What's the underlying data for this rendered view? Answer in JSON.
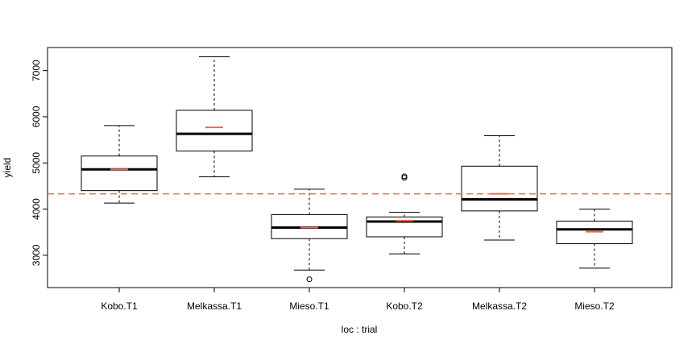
{
  "chart_data": {
    "type": "box",
    "xlabel": "loc : trial",
    "ylabel": "yield",
    "ylim": [
      2300,
      7500
    ],
    "yticks": [
      3000,
      4000,
      5000,
      6000,
      7000
    ],
    "reference_line": {
      "value": 4330,
      "style": "dashed",
      "color": "#F4664A"
    },
    "colors": {
      "box_border": "#000000",
      "median": "#000000",
      "mean_marker": "#F4664A",
      "reference": "#F4664A"
    },
    "categories": [
      "Kobo.T1",
      "Melkassa.T1",
      "Mieso.T1",
      "Kobo.T2",
      "Melkassa.T2",
      "Mieso.T2"
    ],
    "boxes": [
      {
        "category": "Kobo.T1",
        "whisker_low": 4130,
        "q1": 4400,
        "median": 4860,
        "q3": 5150,
        "whisker_high": 5810,
        "mean": 4860,
        "outliers": []
      },
      {
        "category": "Melkassa.T1",
        "whisker_low": 4700,
        "q1": 5260,
        "median": 5630,
        "q3": 6140,
        "whisker_high": 7300,
        "mean": 5770,
        "outliers": []
      },
      {
        "category": "Mieso.T1",
        "whisker_low": 2680,
        "q1": 3360,
        "median": 3600,
        "q3": 3880,
        "whisker_high": 4430,
        "mean": 3600,
        "outliers": [
          2480
        ]
      },
      {
        "category": "Kobo.T2",
        "whisker_low": 3030,
        "q1": 3400,
        "median": 3730,
        "q3": 3830,
        "whisker_high": 3930,
        "mean": 3750,
        "outliers": [
          4680,
          4710
        ]
      },
      {
        "category": "Melkassa.T2",
        "whisker_low": 3330,
        "q1": 3960,
        "median": 4210,
        "q3": 4930,
        "whisker_high": 5590,
        "mean": 4330,
        "outliers": []
      },
      {
        "category": "Mieso.T2",
        "whisker_low": 2720,
        "q1": 3250,
        "median": 3560,
        "q3": 3740,
        "whisker_high": 4000,
        "mean": 3510,
        "outliers": []
      }
    ]
  }
}
